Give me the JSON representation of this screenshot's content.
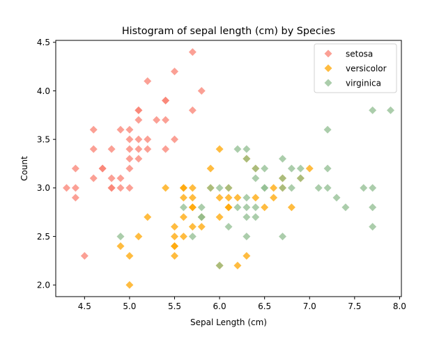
{
  "chart_data": {
    "type": "scatter",
    "title": "Histogram of sepal length (cm) by Species",
    "xlabel": "Sepal Length (cm)",
    "ylabel": "Count",
    "xlim": [
      4.18,
      8.02
    ],
    "ylim": [
      1.88,
      4.52
    ],
    "xticks": [
      "4.5",
      "5.0",
      "5.5",
      "6.0",
      "6.5",
      "7.0",
      "7.5",
      "8.0"
    ],
    "yticks": [
      "2.0",
      "2.5",
      "3.0",
      "3.5",
      "4.0",
      "4.5"
    ],
    "grid": false,
    "legend_position": "top-right",
    "marker": "diamond",
    "series": [
      {
        "name": "setosa",
        "color": "#FA8072",
        "x": [
          4.3,
          4.4,
          4.4,
          4.4,
          4.5,
          4.6,
          4.6,
          4.6,
          4.7,
          4.7,
          4.8,
          4.8,
          4.8,
          4.8,
          4.9,
          4.9,
          4.9,
          5.0,
          5.0,
          5.0,
          5.0,
          5.0,
          5.0,
          5.1,
          5.1,
          5.1,
          5.1,
          5.1,
          5.1,
          5.2,
          5.2,
          5.2,
          5.3,
          5.4,
          5.4,
          5.4,
          5.4,
          5.5,
          5.5,
          5.7,
          5.7,
          5.8
        ],
        "y": [
          3.0,
          3.2,
          3.0,
          2.9,
          2.3,
          3.6,
          3.4,
          3.1,
          3.2,
          3.2,
          3.4,
          3.1,
          3.0,
          3.0,
          3.6,
          3.1,
          3.0,
          3.6,
          3.5,
          3.4,
          3.3,
          3.2,
          3.0,
          3.8,
          3.7,
          3.5,
          3.4,
          3.3,
          3.8,
          4.1,
          3.5,
          3.4,
          3.7,
          3.9,
          3.7,
          3.4,
          3.9,
          4.2,
          3.5,
          4.4,
          3.8,
          4.0
        ]
      },
      {
        "name": "versicolor",
        "color": "#FFA500",
        "x": [
          4.9,
          5.0,
          5.0,
          5.1,
          5.2,
          5.4,
          5.5,
          5.5,
          5.5,
          5.5,
          5.5,
          5.6,
          5.6,
          5.6,
          5.6,
          5.6,
          5.7,
          5.7,
          5.7,
          5.7,
          5.7,
          5.8,
          5.8,
          5.9,
          5.9,
          6.0,
          6.0,
          6.0,
          6.0,
          6.1,
          6.1,
          6.1,
          6.1,
          6.2,
          6.2,
          6.3,
          6.3,
          6.4,
          6.4,
          6.5,
          6.6,
          6.6,
          6.7,
          6.7,
          6.8,
          6.9,
          7.0
        ],
        "y": [
          2.4,
          2.3,
          2.0,
          2.5,
          2.7,
          3.0,
          2.3,
          2.4,
          2.5,
          2.6,
          2.4,
          3.0,
          2.7,
          2.9,
          2.5,
          3.0,
          2.8,
          2.6,
          2.9,
          3.0,
          2.8,
          2.7,
          2.6,
          3.0,
          3.2,
          3.4,
          2.9,
          2.7,
          2.2,
          2.8,
          3.0,
          2.9,
          2.8,
          2.9,
          2.2,
          2.3,
          3.3,
          2.9,
          3.2,
          2.8,
          2.9,
          3.0,
          3.1,
          3.0,
          2.8,
          3.1,
          3.2
        ]
      },
      {
        "name": "virginica",
        "color": "#8FBC8F",
        "x": [
          4.9,
          5.6,
          5.7,
          5.8,
          5.8,
          5.8,
          5.9,
          6.0,
          6.0,
          6.1,
          6.1,
          6.2,
          6.2,
          6.3,
          6.3,
          6.3,
          6.3,
          6.3,
          6.3,
          6.4,
          6.4,
          6.4,
          6.4,
          6.5,
          6.5,
          6.5,
          6.7,
          6.7,
          6.7,
          6.7,
          6.8,
          6.8,
          6.9,
          6.9,
          7.1,
          7.2,
          7.2,
          7.2,
          7.3,
          7.4,
          7.6,
          7.7,
          7.7,
          7.7,
          7.7,
          7.9
        ],
        "y": [
          2.5,
          2.8,
          2.5,
          2.7,
          2.8,
          2.7,
          3.0,
          3.0,
          2.2,
          3.0,
          2.6,
          3.4,
          2.8,
          3.3,
          2.9,
          2.7,
          2.8,
          3.4,
          2.5,
          3.2,
          2.8,
          2.7,
          3.1,
          3.0,
          3.2,
          3.0,
          3.3,
          3.0,
          2.5,
          3.1,
          3.2,
          3.0,
          3.1,
          3.2,
          3.0,
          3.6,
          3.2,
          3.0,
          2.9,
          2.8,
          3.0,
          3.8,
          2.8,
          2.6,
          3.0,
          3.8
        ]
      }
    ]
  }
}
